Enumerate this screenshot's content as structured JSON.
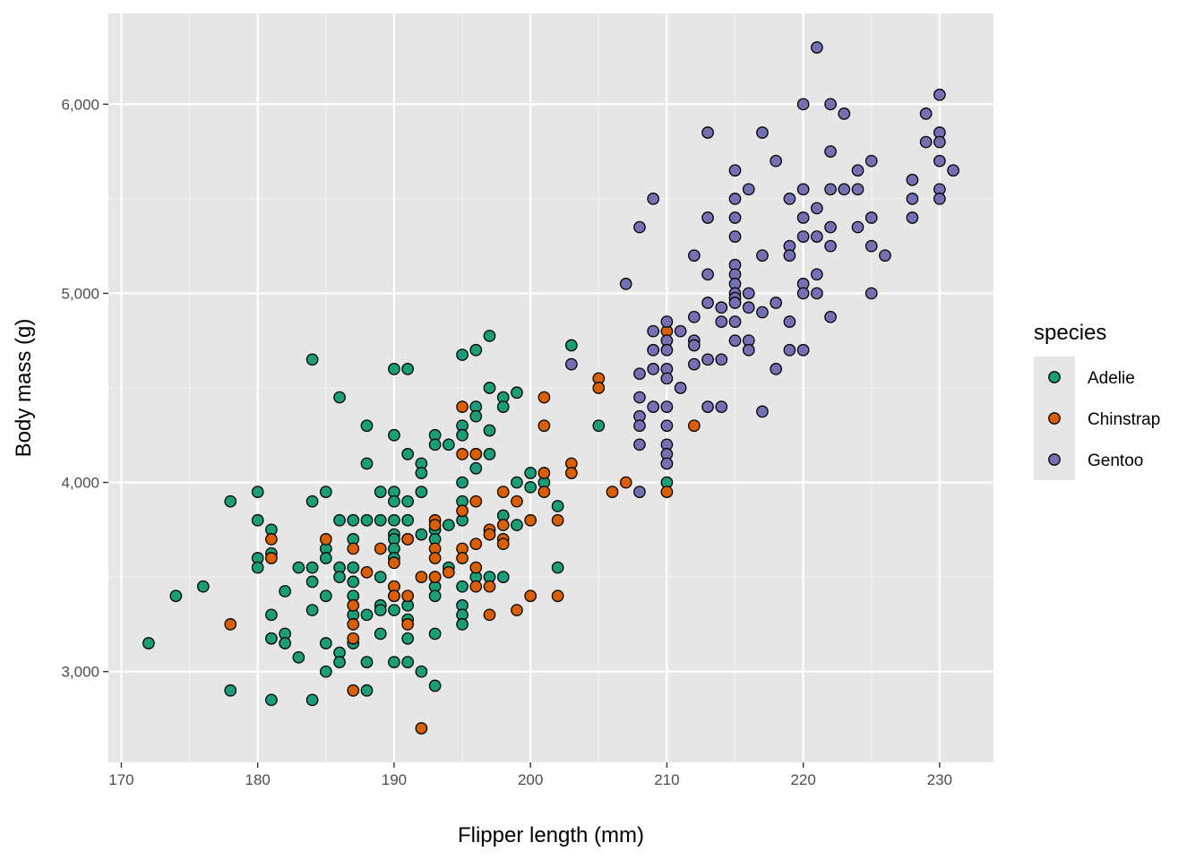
{
  "chart_data": {
    "type": "scatter",
    "xlabel": "Flipper length (mm)",
    "ylabel": "Body mass (g)",
    "xlim": [
      169.05,
      233.95
    ],
    "ylim": [
      2520,
      6480
    ],
    "x_ticks": [
      170,
      180,
      190,
      200,
      210,
      220,
      230
    ],
    "x_tick_labels": [
      "170",
      "180",
      "190",
      "200",
      "210",
      "220",
      "230"
    ],
    "y_ticks": [
      3000,
      4000,
      5000,
      6000
    ],
    "y_tick_labels": [
      "3,000",
      "4,000",
      "5,000",
      "6,000"
    ],
    "grid": true,
    "panel_background": "#e6e6e6",
    "legend": {
      "title": "species",
      "placement": "right"
    },
    "series": [
      {
        "name": "Adelie",
        "color": "#1b9e77",
        "points": [
          [
            172,
            3150
          ],
          [
            174,
            3400
          ],
          [
            176,
            3450
          ],
          [
            178,
            3900
          ],
          [
            178,
            2900
          ],
          [
            180,
            3950
          ],
          [
            180,
            3800
          ],
          [
            180,
            3600
          ],
          [
            180,
            3550
          ],
          [
            181,
            3750
          ],
          [
            181,
            3625
          ],
          [
            181,
            3300
          ],
          [
            181,
            3175
          ],
          [
            181,
            2850
          ],
          [
            182,
            3200
          ],
          [
            182,
            3150
          ],
          [
            182,
            3425
          ],
          [
            183,
            3550
          ],
          [
            183,
            3075
          ],
          [
            184,
            4650
          ],
          [
            184,
            3900
          ],
          [
            184,
            3550
          ],
          [
            184,
            3475
          ],
          [
            184,
            3325
          ],
          [
            184,
            2850
          ],
          [
            185,
            3950
          ],
          [
            185,
            3650
          ],
          [
            185,
            3600
          ],
          [
            185,
            3400
          ],
          [
            185,
            3150
          ],
          [
            185,
            3000
          ],
          [
            186,
            4450
          ],
          [
            186,
            3800
          ],
          [
            186,
            3550
          ],
          [
            186,
            3500
          ],
          [
            186,
            3100
          ],
          [
            186,
            3050
          ],
          [
            187,
            3800
          ],
          [
            187,
            3700
          ],
          [
            187,
            3550
          ],
          [
            187,
            3475
          ],
          [
            187,
            3400
          ],
          [
            187,
            3300
          ],
          [
            187,
            3150
          ],
          [
            188,
            4300
          ],
          [
            188,
            4100
          ],
          [
            188,
            3800
          ],
          [
            188,
            3300
          ],
          [
            188,
            3050
          ],
          [
            188,
            2900
          ],
          [
            189,
            3950
          ],
          [
            189,
            3800
          ],
          [
            189,
            3500
          ],
          [
            189,
            3350
          ],
          [
            189,
            3325
          ],
          [
            189,
            3200
          ],
          [
            190,
            4600
          ],
          [
            190,
            4250
          ],
          [
            190,
            3950
          ],
          [
            190,
            3900
          ],
          [
            190,
            3800
          ],
          [
            190,
            3725
          ],
          [
            190,
            3700
          ],
          [
            190,
            3650
          ],
          [
            190,
            3600
          ],
          [
            190,
            3450
          ],
          [
            190,
            3400
          ],
          [
            190,
            3325
          ],
          [
            190,
            3050
          ],
          [
            191,
            4600
          ],
          [
            191,
            4150
          ],
          [
            191,
            3900
          ],
          [
            191,
            3800
          ],
          [
            191,
            3700
          ],
          [
            191,
            3350
          ],
          [
            191,
            3275
          ],
          [
            191,
            3175
          ],
          [
            191,
            3050
          ],
          [
            192,
            4100
          ],
          [
            192,
            4050
          ],
          [
            192,
            3950
          ],
          [
            192,
            3725
          ],
          [
            192,
            3000
          ],
          [
            193,
            4250
          ],
          [
            193,
            4200
          ],
          [
            193,
            3750
          ],
          [
            193,
            3700
          ],
          [
            193,
            3500
          ],
          [
            193,
            3450
          ],
          [
            193,
            3400
          ],
          [
            193,
            3200
          ],
          [
            193,
            2925
          ],
          [
            194,
            4200
          ],
          [
            194,
            3775
          ],
          [
            194,
            3550
          ],
          [
            195,
            4675
          ],
          [
            195,
            4300
          ],
          [
            195,
            4250
          ],
          [
            195,
            4000
          ],
          [
            195,
            3900
          ],
          [
            195,
            3800
          ],
          [
            195,
            3450
          ],
          [
            195,
            3350
          ],
          [
            195,
            3300
          ],
          [
            195,
            3250
          ],
          [
            196,
            4700
          ],
          [
            196,
            4400
          ],
          [
            196,
            4350
          ],
          [
            196,
            4150
          ],
          [
            196,
            4075
          ],
          [
            196,
            3500
          ],
          [
            197,
            4775
          ],
          [
            197,
            4500
          ],
          [
            197,
            4275
          ],
          [
            197,
            4150
          ],
          [
            197,
            3500
          ],
          [
            198,
            4450
          ],
          [
            198,
            4400
          ],
          [
            198,
            3825
          ],
          [
            198,
            3500
          ],
          [
            199,
            4475
          ],
          [
            199,
            4000
          ],
          [
            199,
            3775
          ],
          [
            200,
            4050
          ],
          [
            200,
            3975
          ],
          [
            201,
            4000
          ],
          [
            202,
            3875
          ],
          [
            202,
            3550
          ],
          [
            203,
            4725
          ],
          [
            205,
            4300
          ],
          [
            210,
            4000
          ]
        ]
      },
      {
        "name": "Chinstrap",
        "color": "#d95f02",
        "points": [
          [
            178,
            3250
          ],
          [
            181,
            3700
          ],
          [
            181,
            3600
          ],
          [
            185,
            3700
          ],
          [
            187,
            3650
          ],
          [
            187,
            3350
          ],
          [
            187,
            3250
          ],
          [
            187,
            3175
          ],
          [
            187,
            2900
          ],
          [
            188,
            3525
          ],
          [
            189,
            3650
          ],
          [
            190,
            3450
          ],
          [
            190,
            3575
          ],
          [
            190,
            3400
          ],
          [
            191,
            3700
          ],
          [
            191,
            3400
          ],
          [
            191,
            3250
          ],
          [
            192,
            3500
          ],
          [
            192,
            2700
          ],
          [
            193,
            3800
          ],
          [
            193,
            3775
          ],
          [
            193,
            3650
          ],
          [
            193,
            3600
          ],
          [
            193,
            3500
          ],
          [
            194,
            3525
          ],
          [
            195,
            4400
          ],
          [
            195,
            4150
          ],
          [
            195,
            3850
          ],
          [
            195,
            3650
          ],
          [
            195,
            3600
          ],
          [
            196,
            3900
          ],
          [
            196,
            4150
          ],
          [
            196,
            3675
          ],
          [
            196,
            3550
          ],
          [
            196,
            3450
          ],
          [
            197,
            3750
          ],
          [
            197,
            3725
          ],
          [
            197,
            3450
          ],
          [
            197,
            3300
          ],
          [
            198,
            3775
          ],
          [
            198,
            3700
          ],
          [
            198,
            3675
          ],
          [
            198,
            3950
          ],
          [
            199,
            3900
          ],
          [
            199,
            3325
          ],
          [
            200,
            3800
          ],
          [
            200,
            3400
          ],
          [
            201,
            4450
          ],
          [
            201,
            4300
          ],
          [
            201,
            4050
          ],
          [
            201,
            3950
          ],
          [
            202,
            3800
          ],
          [
            202,
            3400
          ],
          [
            203,
            4100
          ],
          [
            203,
            4050
          ],
          [
            205,
            4550
          ],
          [
            205,
            4500
          ],
          [
            206,
            3950
          ],
          [
            207,
            4000
          ],
          [
            210,
            4800
          ],
          [
            210,
            4100
          ],
          [
            210,
            3950
          ],
          [
            212,
            4300
          ]
        ]
      },
      {
        "name": "Gentoo",
        "color": "#7570b3",
        "points": [
          [
            203,
            4625
          ],
          [
            207,
            5050
          ],
          [
            208,
            5350
          ],
          [
            208,
            4575
          ],
          [
            208,
            4450
          ],
          [
            208,
            4350
          ],
          [
            208,
            4300
          ],
          [
            208,
            4200
          ],
          [
            208,
            3950
          ],
          [
            209,
            5500
          ],
          [
            209,
            4800
          ],
          [
            209,
            4700
          ],
          [
            209,
            4400
          ],
          [
            209,
            4600
          ],
          [
            210,
            4850
          ],
          [
            210,
            4750
          ],
          [
            210,
            4700
          ],
          [
            210,
            4600
          ],
          [
            210,
            4550
          ],
          [
            210,
            4400
          ],
          [
            210,
            4300
          ],
          [
            210,
            4200
          ],
          [
            210,
            4150
          ],
          [
            210,
            4100
          ],
          [
            211,
            4800
          ],
          [
            211,
            4500
          ],
          [
            212,
            5200
          ],
          [
            212,
            4875
          ],
          [
            212,
            4750
          ],
          [
            212,
            4725
          ],
          [
            212,
            4625
          ],
          [
            213,
            5850
          ],
          [
            213,
            5400
          ],
          [
            213,
            5100
          ],
          [
            213,
            4950
          ],
          [
            213,
            4650
          ],
          [
            213,
            4400
          ],
          [
            214,
            4925
          ],
          [
            214,
            4850
          ],
          [
            214,
            4650
          ],
          [
            214,
            4400
          ],
          [
            215,
            5650
          ],
          [
            215,
            5500
          ],
          [
            215,
            5400
          ],
          [
            215,
            5300
          ],
          [
            215,
            5150
          ],
          [
            215,
            5100
          ],
          [
            215,
            5050
          ],
          [
            215,
            5000
          ],
          [
            215,
            4975
          ],
          [
            215,
            4950
          ],
          [
            215,
            4850
          ],
          [
            215,
            4750
          ],
          [
            216,
            5550
          ],
          [
            216,
            5000
          ],
          [
            216,
            4925
          ],
          [
            216,
            4750
          ],
          [
            216,
            4700
          ],
          [
            217,
            5850
          ],
          [
            217,
            5200
          ],
          [
            217,
            4900
          ],
          [
            217,
            4375
          ],
          [
            218,
            5700
          ],
          [
            218,
            4950
          ],
          [
            218,
            4600
          ],
          [
            219,
            5500
          ],
          [
            219,
            5250
          ],
          [
            219,
            5200
          ],
          [
            219,
            4850
          ],
          [
            219,
            4700
          ],
          [
            220,
            6000
          ],
          [
            220,
            5550
          ],
          [
            220,
            5400
          ],
          [
            220,
            5300
          ],
          [
            220,
            5050
          ],
          [
            220,
            5000
          ],
          [
            220,
            4700
          ],
          [
            221,
            6300
          ],
          [
            221,
            5450
          ],
          [
            221,
            5300
          ],
          [
            221,
            5100
          ],
          [
            221,
            5000
          ],
          [
            222,
            6000
          ],
          [
            222,
            5750
          ],
          [
            222,
            5550
          ],
          [
            222,
            5350
          ],
          [
            222,
            5250
          ],
          [
            222,
            4875
          ],
          [
            223,
            5950
          ],
          [
            223,
            5550
          ],
          [
            224,
            5650
          ],
          [
            224,
            5550
          ],
          [
            224,
            5350
          ],
          [
            225,
            5700
          ],
          [
            225,
            5400
          ],
          [
            225,
            5250
          ],
          [
            225,
            5000
          ],
          [
            226,
            5200
          ],
          [
            228,
            5600
          ],
          [
            228,
            5500
          ],
          [
            228,
            5400
          ],
          [
            229,
            5950
          ],
          [
            229,
            5800
          ],
          [
            230,
            6050
          ],
          [
            230,
            5850
          ],
          [
            230,
            5800
          ],
          [
            230,
            5700
          ],
          [
            230,
            5550
          ],
          [
            230,
            5500
          ],
          [
            231,
            5650
          ]
        ]
      }
    ]
  }
}
